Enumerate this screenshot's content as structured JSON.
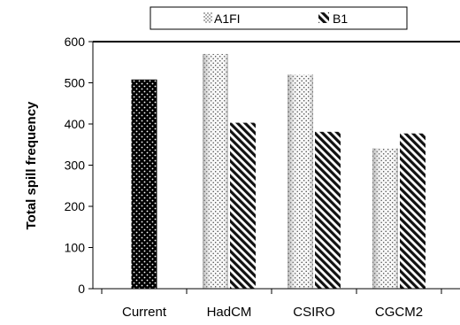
{
  "chart_data": {
    "type": "bar",
    "title": "",
    "xlabel": "",
    "ylabel": "Total spill frequency",
    "ylim": [
      0,
      600
    ],
    "yticks": [
      0,
      100,
      200,
      300,
      400,
      500,
      600
    ],
    "grid": false,
    "legend_position": "top",
    "categories": [
      "Current",
      "HadCM",
      "CSIRO",
      "CGCM2"
    ],
    "current": {
      "category": "Current",
      "value": 508
    },
    "series": [
      {
        "name": "A1FI",
        "pattern": "dotted",
        "values": [
          null,
          570,
          520,
          341
        ]
      },
      {
        "name": "B1",
        "pattern": "diagonal-stripes",
        "values": [
          null,
          403,
          381,
          377
        ]
      }
    ]
  }
}
